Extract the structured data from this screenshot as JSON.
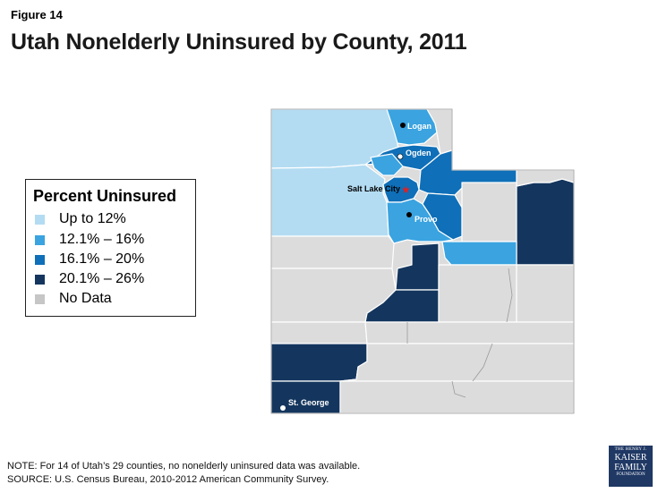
{
  "figure_label": "Figure 14",
  "title": "Utah Nonelderly Uninsured by County, 2011",
  "legend": {
    "title": "Percent Uninsured",
    "items": [
      {
        "label": "Up to 12%",
        "color": "#b3dcf2"
      },
      {
        "label": "12.1% – 16%",
        "color": "#3aa3e0"
      },
      {
        "label": "16.1% – 20%",
        "color": "#0f6fb8"
      },
      {
        "label": "20.1% – 26%",
        "color": "#14365e"
      },
      {
        "label": "No Data",
        "color": "#c6c6c6"
      }
    ]
  },
  "cities": {
    "logan": "Logan",
    "ogden": "Ogden",
    "slc": "Salt Lake City",
    "provo": "Provo",
    "stgeorge": "St. George"
  },
  "footnote": {
    "note": "NOTE: For 14 of Utah’s 29 counties, no nonelderly uninsured data was available.",
    "source": "SOURCE: U.S. Census Bureau, 2010-2012 American Community Survey."
  },
  "logo": {
    "line1": "THE HENRY J.",
    "line2a": "KAISER",
    "line2b": "FAMILY",
    "line3": "FOUNDATION"
  },
  "colors": {
    "low": "#b3dcf2",
    "mid": "#3aa3e0",
    "high": "#0f6fb8",
    "top": "#14365e",
    "nodata": "#dcdcdc",
    "county_border": "#ffffff",
    "outer_border": "#555555"
  }
}
